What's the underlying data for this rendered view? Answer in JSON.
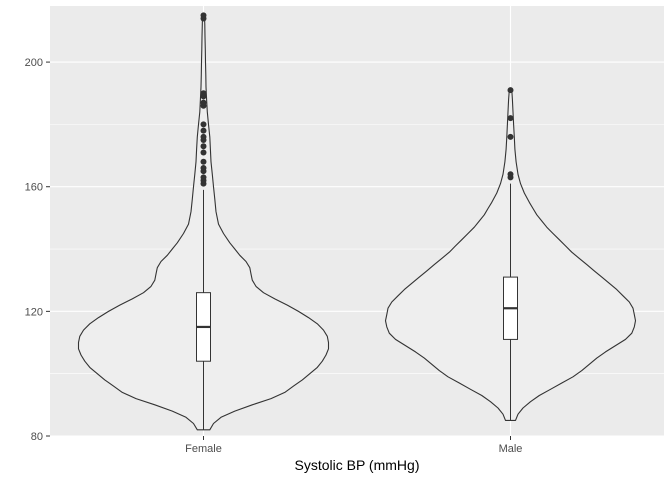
{
  "chart_data": {
    "type": "violin",
    "title": "",
    "xlabel": "Systolic BP (mmHg)",
    "ylabel": "",
    "categories": [
      "Female",
      "Male"
    ],
    "ylim": [
      80,
      218
    ],
    "yticks": [
      80,
      120,
      160,
      200
    ],
    "ytick_labels": [
      "80",
      "120",
      "160",
      "200"
    ],
    "grid": true,
    "legend": "none",
    "colors": {
      "panel": "#ebebeb",
      "grid_major": "#ffffff",
      "violin_fill": "#eeeeee",
      "outline": "#333333",
      "box_fill": "#ffffff",
      "outlier": "#333333"
    },
    "groups": [
      {
        "name": "Female",
        "range": [
          82,
          215
        ],
        "box": {
          "q1": 104,
          "median": 115,
          "q3": 126,
          "whisker_low": 82,
          "whisker_high": 159
        },
        "outliers": [
          161,
          162,
          163,
          165,
          166,
          168,
          171,
          173,
          175,
          176,
          178,
          180,
          186,
          187,
          189,
          190,
          214,
          215
        ],
        "density": [
          [
            82,
            0.05
          ],
          [
            84,
            0.08
          ],
          [
            86,
            0.14
          ],
          [
            88,
            0.25
          ],
          [
            90,
            0.39
          ],
          [
            92,
            0.54
          ],
          [
            94,
            0.65
          ],
          [
            96,
            0.72
          ],
          [
            98,
            0.79
          ],
          [
            100,
            0.85
          ],
          [
            102,
            0.91
          ],
          [
            104,
            0.95
          ],
          [
            106,
            0.98
          ],
          [
            108,
            1.0
          ],
          [
            110,
            1.0
          ],
          [
            112,
            0.99
          ],
          [
            114,
            0.96
          ],
          [
            116,
            0.91
          ],
          [
            118,
            0.84
          ],
          [
            120,
            0.76
          ],
          [
            122,
            0.67
          ],
          [
            124,
            0.57
          ],
          [
            126,
            0.48
          ],
          [
            128,
            0.42
          ],
          [
            130,
            0.39
          ],
          [
            132,
            0.38
          ],
          [
            134,
            0.37
          ],
          [
            136,
            0.34
          ],
          [
            138,
            0.29
          ],
          [
            140,
            0.25
          ],
          [
            142,
            0.21
          ],
          [
            145,
            0.16
          ],
          [
            148,
            0.12
          ],
          [
            152,
            0.1
          ],
          [
            156,
            0.09
          ],
          [
            160,
            0.08
          ],
          [
            164,
            0.07
          ],
          [
            168,
            0.06
          ],
          [
            172,
            0.055
          ],
          [
            176,
            0.05
          ],
          [
            180,
            0.04
          ],
          [
            184,
            0.03
          ],
          [
            188,
            0.025
          ],
          [
            192,
            0.02
          ],
          [
            196,
            0.018
          ],
          [
            200,
            0.016
          ],
          [
            204,
            0.014
          ],
          [
            208,
            0.012
          ],
          [
            212,
            0.01
          ],
          [
            215,
            0.008
          ]
        ]
      },
      {
        "name": "Male",
        "range": [
          85,
          191
        ],
        "box": {
          "q1": 111,
          "median": 121,
          "q3": 131,
          "whisker_low": 85,
          "whisker_high": 161
        },
        "outliers": [
          163,
          164,
          176,
          182,
          191
        ],
        "density": [
          [
            85,
            0.04
          ],
          [
            87,
            0.06
          ],
          [
            89,
            0.1
          ],
          [
            91,
            0.16
          ],
          [
            93,
            0.23
          ],
          [
            95,
            0.32
          ],
          [
            97,
            0.41
          ],
          [
            99,
            0.5
          ],
          [
            101,
            0.57
          ],
          [
            103,
            0.63
          ],
          [
            105,
            0.69
          ],
          [
            107,
            0.76
          ],
          [
            109,
            0.84
          ],
          [
            111,
            0.92
          ],
          [
            113,
            0.97
          ],
          [
            115,
            0.99
          ],
          [
            117,
            1.0
          ],
          [
            119,
            0.99
          ],
          [
            121,
            0.98
          ],
          [
            123,
            0.95
          ],
          [
            125,
            0.9
          ],
          [
            127,
            0.85
          ],
          [
            129,
            0.79
          ],
          [
            131,
            0.73
          ],
          [
            133,
            0.67
          ],
          [
            135,
            0.61
          ],
          [
            137,
            0.55
          ],
          [
            139,
            0.49
          ],
          [
            141,
            0.44
          ],
          [
            143,
            0.39
          ],
          [
            145,
            0.34
          ],
          [
            147,
            0.29
          ],
          [
            149,
            0.25
          ],
          [
            151,
            0.21
          ],
          [
            153,
            0.18
          ],
          [
            155,
            0.15
          ],
          [
            158,
            0.11
          ],
          [
            161,
            0.08
          ],
          [
            164,
            0.06
          ],
          [
            168,
            0.045
          ],
          [
            172,
            0.035
          ],
          [
            176,
            0.03
          ],
          [
            180,
            0.025
          ],
          [
            184,
            0.02
          ],
          [
            188,
            0.015
          ],
          [
            191,
            0.01
          ]
        ]
      }
    ]
  }
}
